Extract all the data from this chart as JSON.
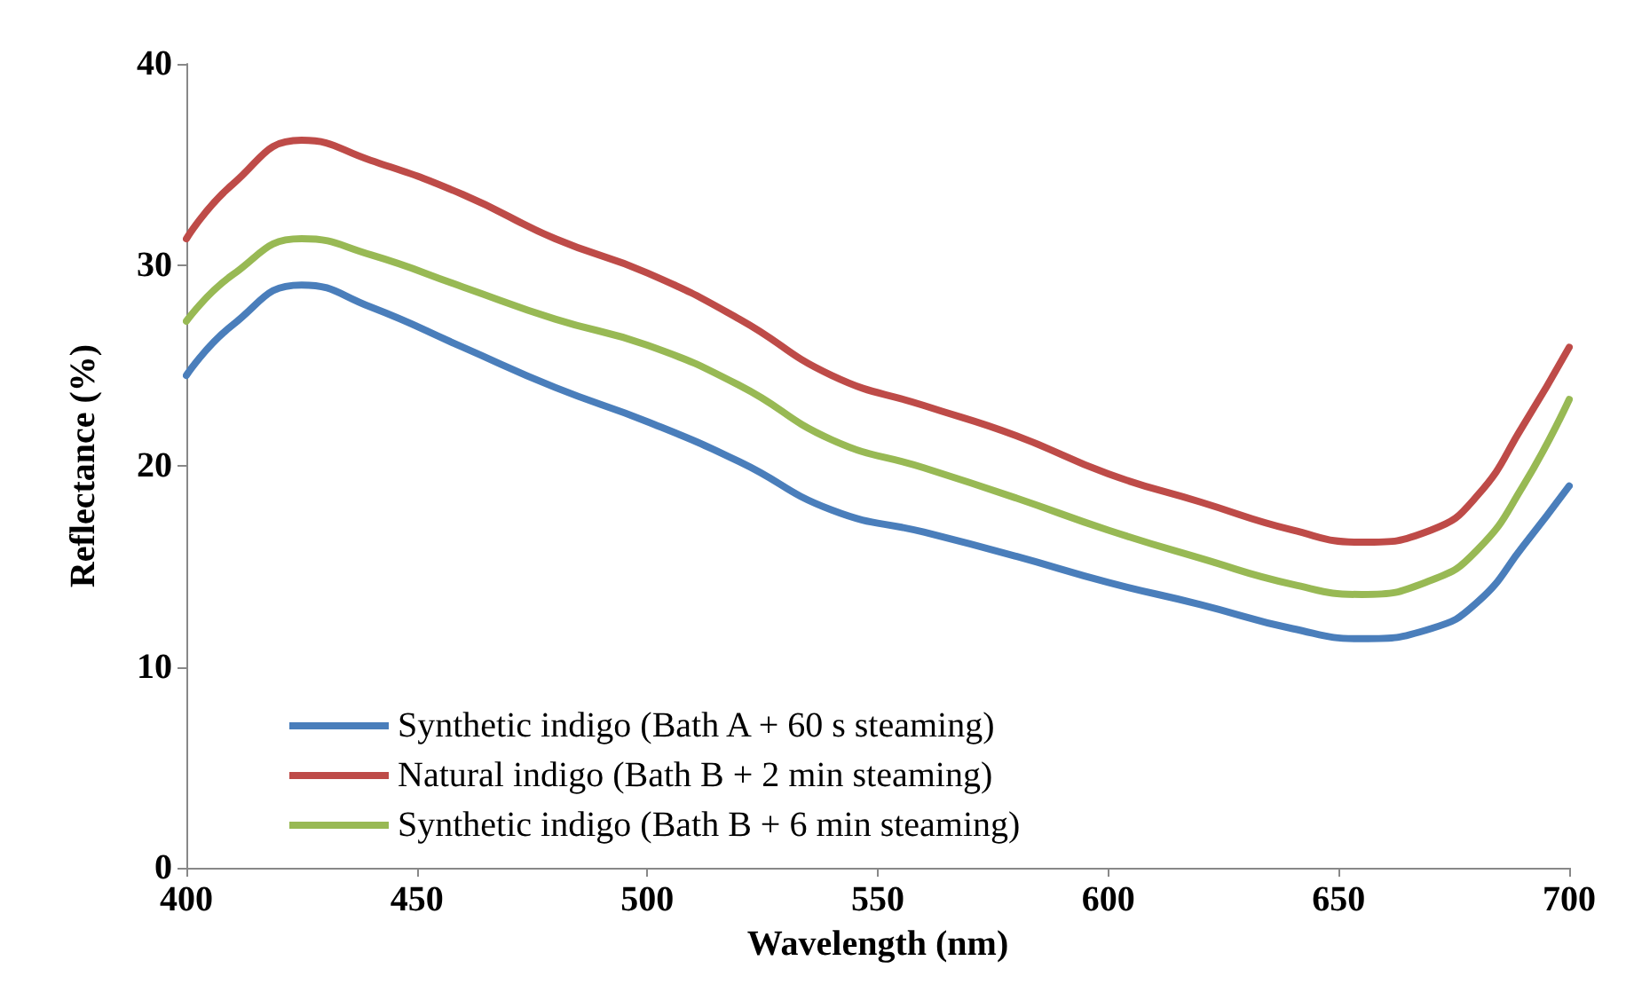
{
  "chart_data": {
    "type": "line",
    "xlabel": "Wavelength (nm)",
    "ylabel": "Reflectance (%)",
    "x": [
      400,
      410,
      425,
      440,
      460,
      480,
      500,
      520,
      540,
      560,
      580,
      600,
      620,
      640,
      655,
      670,
      680,
      690,
      700
    ],
    "series": [
      {
        "name": "Synthetic indigo (Bath A + 60 s steaming)",
        "color": "#4a7ebb",
        "values": [
          24.5,
          27,
          29,
          27.9,
          25.9,
          23.9,
          22.2,
          20.2,
          17.8,
          16.7,
          15.5,
          14.2,
          13.1,
          11.9,
          11.4,
          11.9,
          13.2,
          16,
          19
        ]
      },
      {
        "name": "Natural indigo (Bath B + 2 min steaming)",
        "color": "#be4b48",
        "values": [
          31.3,
          34,
          36.2,
          35.2,
          33.5,
          31.3,
          29.6,
          27.3,
          24.5,
          23,
          21.5,
          19.6,
          18.2,
          16.8,
          16.2,
          16.8,
          18.5,
          22,
          25.9
        ]
      },
      {
        "name": "Synthetic indigo (Bath B + 6 min steaming)",
        "color": "#98b954",
        "values": [
          27.2,
          29.5,
          31.3,
          30.5,
          28.9,
          27.3,
          26,
          24,
          21.3,
          19.9,
          18.4,
          16.8,
          15.4,
          14.1,
          13.6,
          14.3,
          15.8,
          19,
          23.3
        ]
      }
    ],
    "xlim": [
      400,
      700
    ],
    "xticks": [
      400,
      450,
      500,
      550,
      600,
      650,
      700
    ],
    "ylim": [
      0,
      40
    ],
    "yticks": [
      0,
      10,
      20,
      30,
      40
    ],
    "grid": false,
    "legend": "bottom left",
    "marker": "none",
    "line_style": "solid"
  }
}
